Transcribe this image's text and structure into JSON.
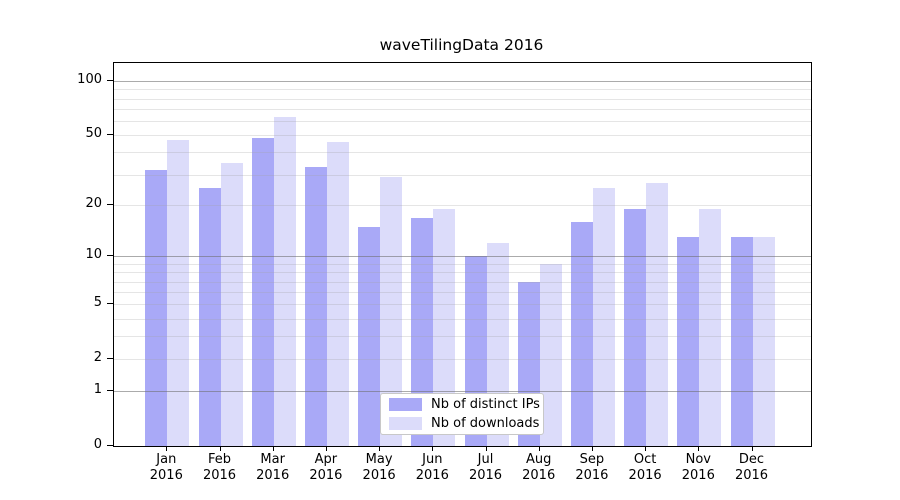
{
  "title": "waveTilingData 2016",
  "colors": {
    "background": "#ffffff",
    "axis": "#000000",
    "distinct_ips_bar": "#a9a9f7",
    "downloads_bar": "#dcdcfa",
    "grid_decade": "#ababab",
    "grid_minor": "#e4e4e4",
    "legend_border": "#c8c8c8"
  },
  "chart_data": {
    "type": "bar",
    "title": "waveTilingData 2016",
    "categories": [
      "Jan",
      "Feb",
      "Mar",
      "Apr",
      "May",
      "Jun",
      "Jul",
      "Aug",
      "Sep",
      "Oct",
      "Nov",
      "Dec"
    ],
    "year": "2016",
    "series": [
      {
        "name": "Nb of distinct IPs",
        "color": "#a9a9f7",
        "values": [
          32,
          25,
          48,
          33,
          15,
          17,
          10,
          7,
          16,
          19,
          13,
          13
        ]
      },
      {
        "name": "Nb of downloads",
        "color": "#dcdcfa",
        "values": [
          47,
          35,
          63,
          46,
          29,
          19,
          12,
          9,
          25,
          27,
          19,
          13
        ]
      }
    ],
    "y_scale": "log10(value+1)",
    "ylim": [
      0,
      125
    ],
    "y_tick_labels": [
      "100",
      "50",
      "20",
      "10",
      "5",
      "2",
      "1",
      "0"
    ],
    "y_tick_values": [
      100,
      50,
      20,
      10,
      5,
      2,
      1,
      0
    ],
    "y_decade_gridlines": [
      1,
      10,
      100
    ],
    "y_minor_gridlines": [
      2,
      3,
      4,
      5,
      6,
      7,
      8,
      9,
      20,
      30,
      40,
      50,
      60,
      70,
      80,
      90
    ],
    "grid": true,
    "legend_position": "lower-center",
    "xlabel": "",
    "ylabel": ""
  }
}
